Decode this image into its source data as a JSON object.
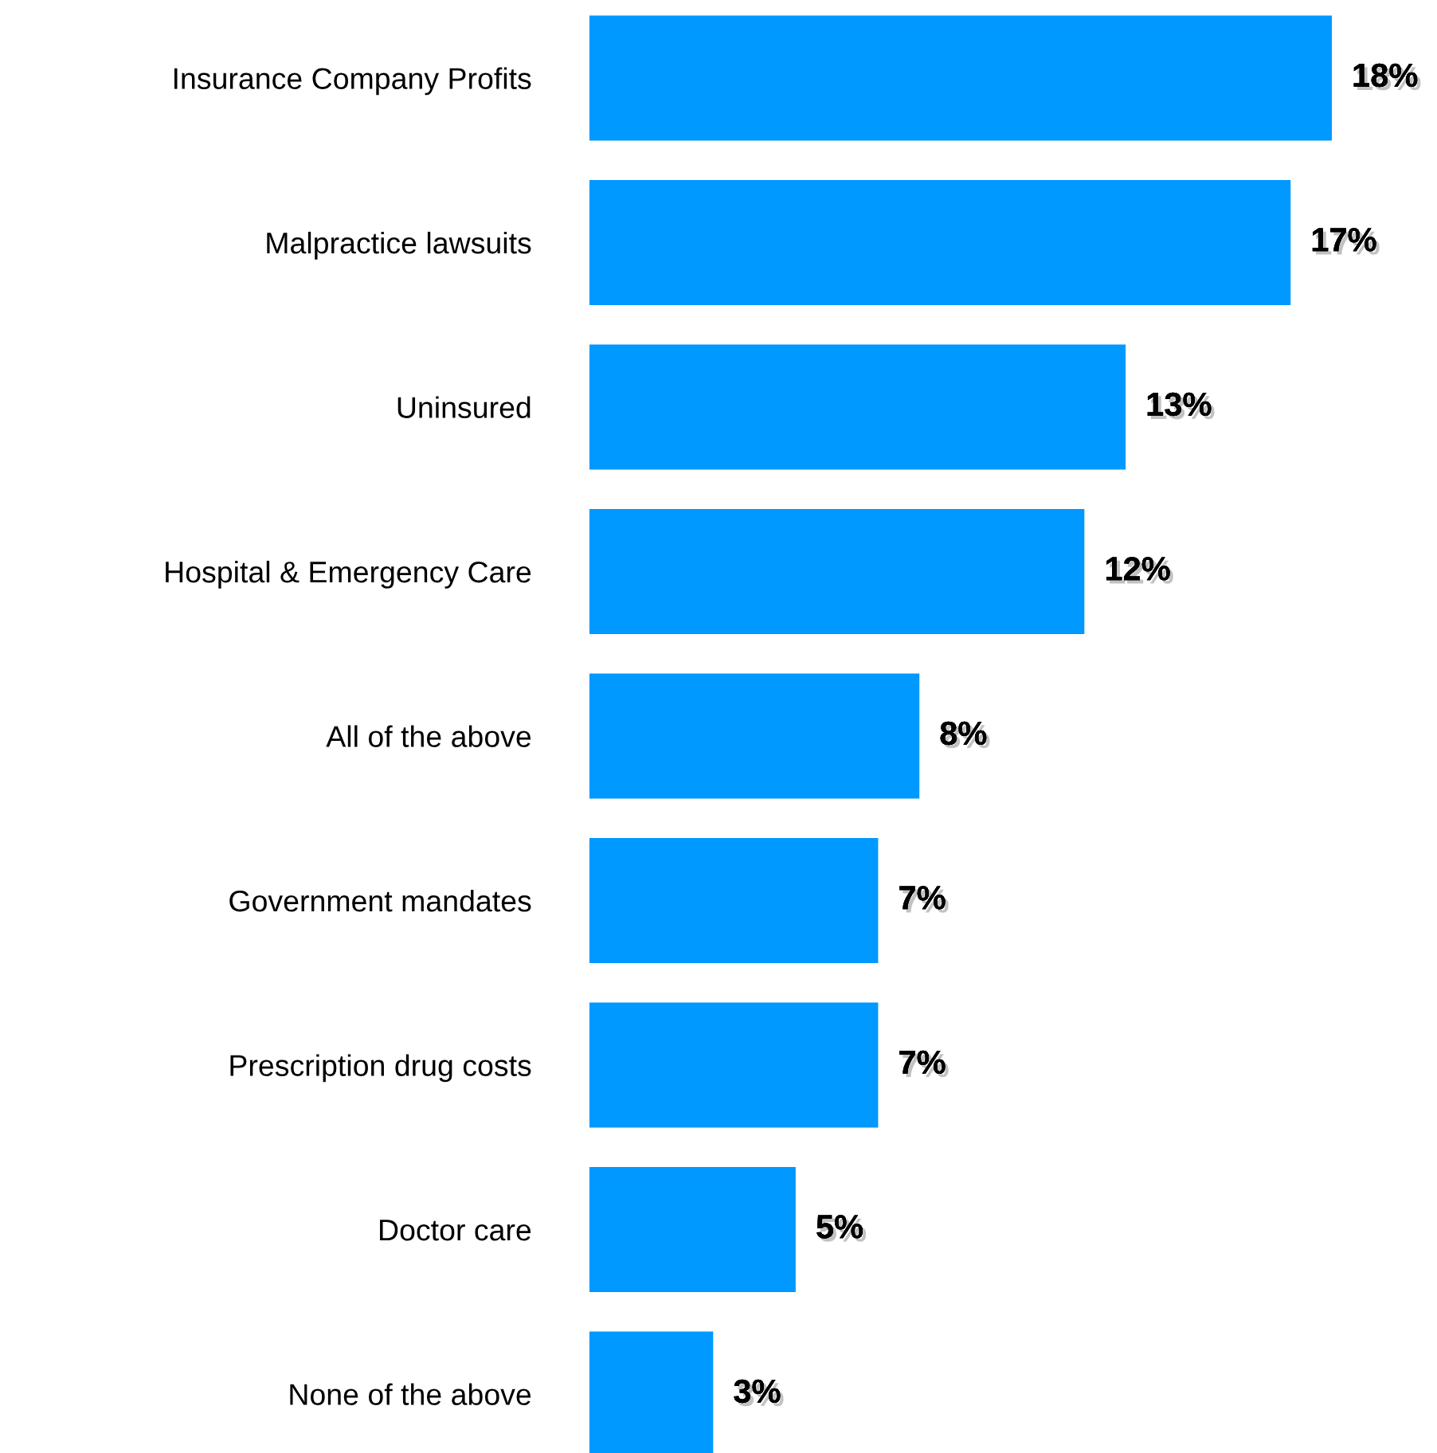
{
  "chart_data": {
    "type": "bar",
    "orientation": "horizontal",
    "categories": [
      "Insurance Company Profits",
      "Malpractice lawsuits",
      "Uninsured",
      "Hospital & Emergency Care",
      "All of the above",
      "Government mandates",
      "Prescription drug costs",
      "Doctor care",
      "None of the above"
    ],
    "values": [
      18,
      17,
      13,
      12,
      8,
      7,
      7,
      5,
      3
    ],
    "value_labels": [
      "18%",
      "17%",
      "13%",
      "12%",
      "8%",
      "7%",
      "7%",
      "5%",
      "3%"
    ],
    "color": "#0099ff",
    "grid": false,
    "legend": false,
    "tick_labels": "y"
  }
}
